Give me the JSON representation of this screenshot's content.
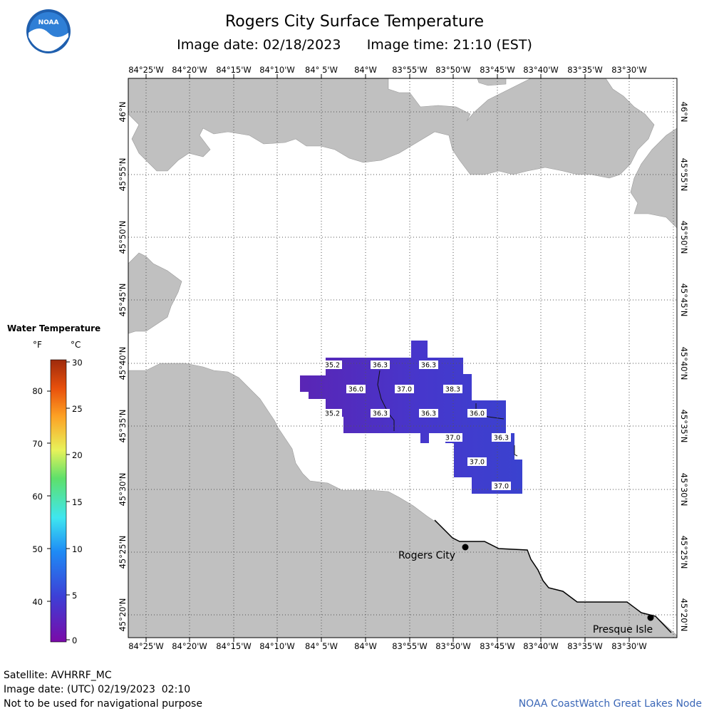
{
  "title": "Rogers City Surface Temperature",
  "image_date_label": "Image date: 02/18/2023",
  "image_time_label": "Image time: 21:10 (EST)",
  "logo_text": "NOAA",
  "lon_ticks": [
    "84°25'W",
    "84°20'W",
    "84°15'W",
    "84°10'W",
    "84° 5'W",
    "84°W",
    "83°55'W",
    "83°50'W",
    "83°45'W",
    "83°40'W",
    "83°35'W",
    "83°30'W"
  ],
  "lat_ticks": [
    "46°N",
    "45°55'N",
    "45°50'N",
    "45°45'N",
    "45°40'N",
    "45°35'N",
    "45°30'N",
    "45°25'N",
    "45°20'N"
  ],
  "legend": {
    "title": "Water Temperature",
    "unit_f": "°F",
    "unit_c": "°C",
    "f_labels": [
      "80",
      "70",
      "60",
      "50",
      "40"
    ],
    "c_labels": [
      "30",
      "25",
      "20",
      "15",
      "10",
      "5",
      "0"
    ]
  },
  "places": [
    {
      "name": "Rogers City"
    },
    {
      "name": "Presque Isle"
    }
  ],
  "temperature_labels": [
    "35.2",
    "36.3",
    "36.3",
    "36.0",
    "37.0",
    "38.3",
    "35.2",
    "36.3",
    "36.3",
    "36.0",
    "37.0",
    "36.3",
    "37.0",
    "37.0"
  ],
  "colors": {
    "land": "#c0c0c0",
    "water_cold": "#5a2bbd",
    "water_warm": "#3a45d0",
    "credit": "#3b67b7"
  },
  "footer": {
    "satellite": "Satellite: AVHRRF_MC",
    "utc_date": "Image date: (UTC) 02/19/2023  02:10",
    "disclaimer": "Not to be used for navigational purpose",
    "credit": "NOAA CoastWatch Great Lakes Node"
  }
}
